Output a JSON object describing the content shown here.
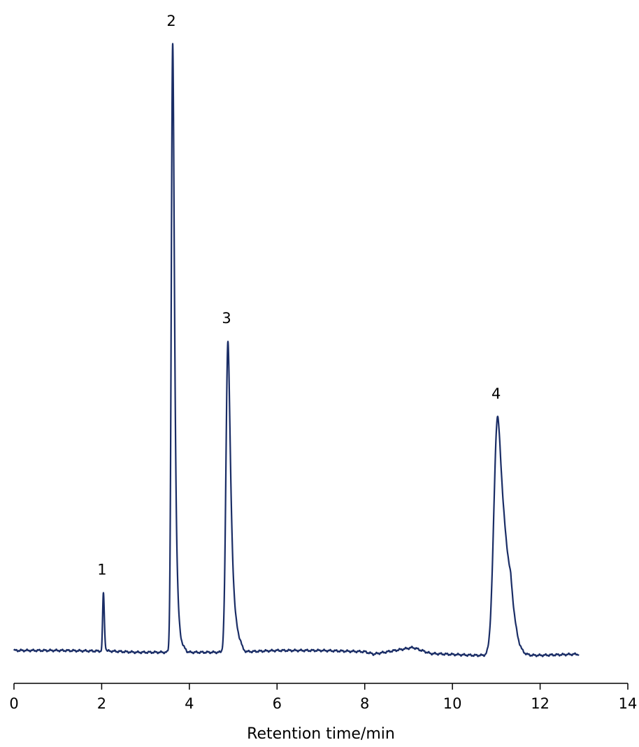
{
  "chart_data": {
    "type": "line",
    "title": "",
    "xlabel": "Retention time/min",
    "ylabel": "",
    "xlim": [
      0,
      14
    ],
    "x_ticks": [
      0,
      2,
      4,
      6,
      8,
      10,
      12,
      14
    ],
    "x_tick_labels": [
      "0",
      "2",
      "4",
      "6",
      "8",
      "10",
      "12",
      "14"
    ],
    "y_axis_visible": false,
    "grid": false,
    "legend": "none",
    "trace_color": "#1a2d66",
    "series": [
      {
        "x": [
          0,
          0.9,
          1.1,
          1.9,
          2.04,
          2.2,
          2.8,
          3.62,
          3.8,
          4.5,
          4.88,
          5.0,
          6.0,
          7.0,
          8.0,
          8.2,
          9.1,
          9.5,
          10.5,
          11.03,
          11.5,
          12.0,
          12.88
        ],
        "y": [
          0.0,
          0.0,
          0.0,
          -0.01,
          0.95,
          -0.01,
          -0.03,
          10.0,
          -0.03,
          -0.03,
          5.1,
          -0.03,
          0.0,
          0.0,
          -0.02,
          -0.06,
          0.05,
          -0.05,
          -0.08,
          3.85,
          -0.08,
          -0.08,
          -0.06
        ]
      }
    ],
    "peaks": [
      {
        "label": "1",
        "x": 2.04,
        "y": 0.95
      },
      {
        "label": "2",
        "x": 3.62,
        "y": 10.0
      },
      {
        "label": "3",
        "x": 4.88,
        "y": 5.1
      },
      {
        "label": "4",
        "x": 11.03,
        "y": 3.85
      }
    ]
  }
}
